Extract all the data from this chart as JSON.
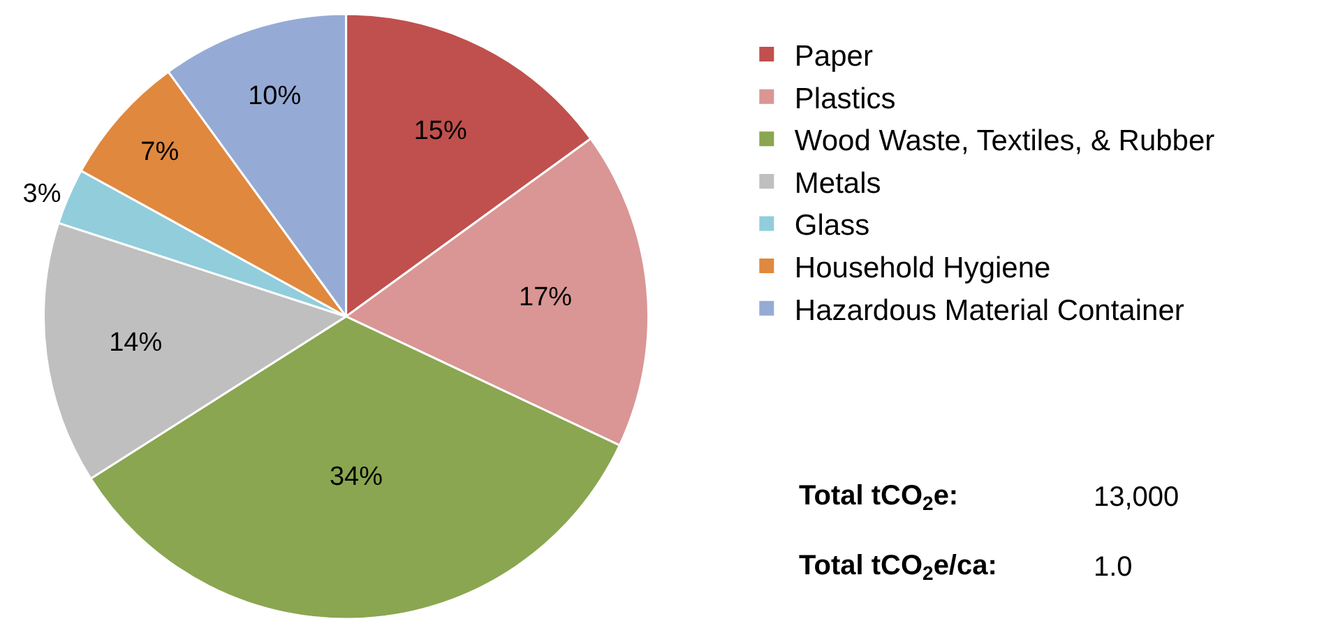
{
  "chart_data": {
    "type": "pie",
    "categories": [
      "Paper",
      "Plastics",
      "Wood Waste, Textiles, & Rubber",
      "Metals",
      "Glass",
      "Household Hygiene",
      "Hazardous Material Container"
    ],
    "values": [
      15,
      17,
      34,
      14,
      3,
      7,
      10
    ],
    "colors": [
      "#c0504d",
      "#d99694",
      "#8aa650",
      "#bfbfbf",
      "#92cddc",
      "#e0883e",
      "#95abd5"
    ],
    "value_labels": [
      "15%",
      "17%",
      "34%",
      "14%",
      "3%",
      "7%",
      "10%"
    ],
    "legend": "right",
    "annotations": [
      "Total tCO$_{2}$e:",
      "13,000",
      "Total tCO$_{2}$e/ca:",
      "1.0"
    ]
  }
}
